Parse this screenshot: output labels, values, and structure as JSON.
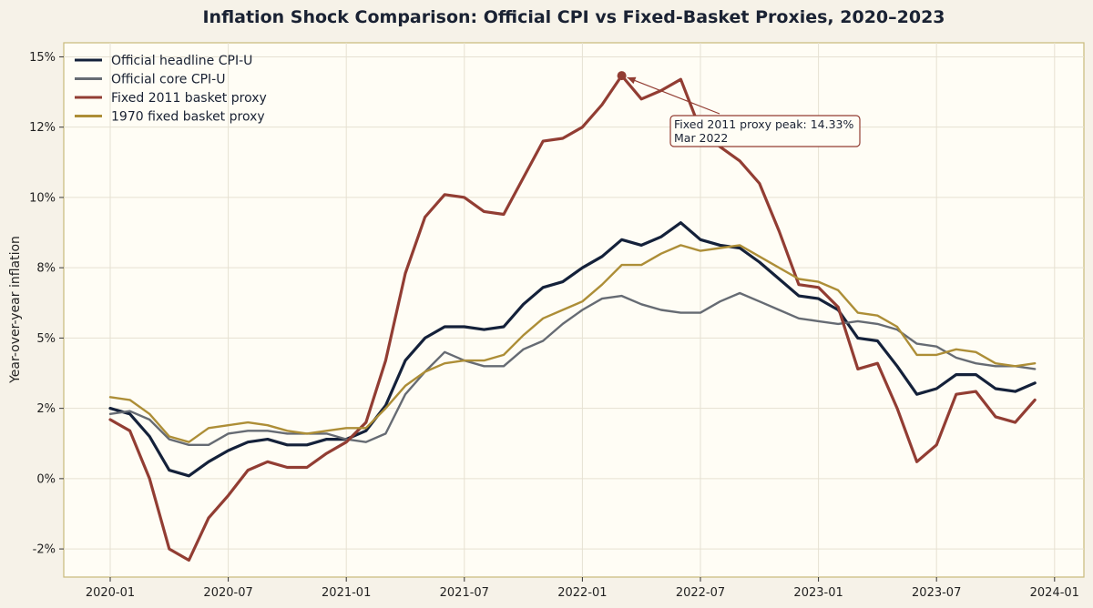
{
  "chart_data": {
    "type": "line",
    "title": "Inflation Shock Comparison: Official CPI vs Fixed-Basket Proxies, 2020–2023",
    "xlabel": "",
    "ylabel": "Year-over-year inflation",
    "x": [
      "2020-01",
      "2020-02",
      "2020-03",
      "2020-04",
      "2020-05",
      "2020-06",
      "2020-07",
      "2020-08",
      "2020-09",
      "2020-10",
      "2020-11",
      "2020-12",
      "2021-01",
      "2021-02",
      "2021-03",
      "2021-04",
      "2021-05",
      "2021-06",
      "2021-07",
      "2021-08",
      "2021-09",
      "2021-10",
      "2021-11",
      "2021-12",
      "2022-01",
      "2022-02",
      "2022-03",
      "2022-04",
      "2022-05",
      "2022-06",
      "2022-07",
      "2022-08",
      "2022-09",
      "2022-10",
      "2022-11",
      "2022-12",
      "2023-01",
      "2023-02",
      "2023-03",
      "2023-04",
      "2023-05",
      "2023-06",
      "2023-07",
      "2023-08",
      "2023-09",
      "2023-10",
      "2023-11",
      "2023-12"
    ],
    "x_ticks": [
      "2020-01",
      "2020-07",
      "2021-01",
      "2021-07",
      "2022-01",
      "2022-07",
      "2023-01",
      "2023-07",
      "2024-01"
    ],
    "y_ticks": [
      -2.5,
      0,
      2.5,
      5,
      7.5,
      10,
      12.5,
      15
    ],
    "y_tick_labels": [
      "-2%",
      "0%",
      "2%",
      "5%",
      "8%",
      "10%",
      "12%",
      "15%"
    ],
    "ylim": [
      -3.5,
      15.5
    ],
    "grid": true,
    "legend_position": "top-left",
    "series": [
      {
        "name": "Official headline CPI-U",
        "color": "#14213a",
        "values": [
          2.5,
          2.3,
          1.5,
          0.3,
          0.1,
          0.6,
          1.0,
          1.3,
          1.4,
          1.2,
          1.2,
          1.4,
          1.4,
          1.7,
          2.6,
          4.2,
          5.0,
          5.4,
          5.4,
          5.3,
          5.4,
          6.2,
          6.8,
          7.0,
          7.5,
          7.9,
          8.5,
          8.3,
          8.6,
          9.1,
          8.5,
          8.3,
          8.2,
          7.7,
          7.1,
          6.5,
          6.4,
          6.0,
          5.0,
          4.9,
          4.0,
          3.0,
          3.2,
          3.7,
          3.7,
          3.2,
          3.1,
          3.4
        ]
      },
      {
        "name": "Official core CPI-U",
        "color": "#666b73",
        "values": [
          2.3,
          2.4,
          2.1,
          1.4,
          1.2,
          1.2,
          1.6,
          1.7,
          1.7,
          1.6,
          1.6,
          1.6,
          1.4,
          1.3,
          1.6,
          3.0,
          3.8,
          4.5,
          4.2,
          4.0,
          4.0,
          4.6,
          4.9,
          5.5,
          6.0,
          6.4,
          6.5,
          6.2,
          6.0,
          5.9,
          5.9,
          6.3,
          6.6,
          6.3,
          6.0,
          5.7,
          5.6,
          5.5,
          5.6,
          5.5,
          5.3,
          4.8,
          4.7,
          4.3,
          4.1,
          4.0,
          4.0,
          3.9
        ]
      },
      {
        "name": "Fixed 2011 basket proxy",
        "color": "#923d33",
        "values": [
          2.1,
          1.7,
          0.0,
          -2.5,
          -2.9,
          -1.4,
          -0.6,
          0.3,
          0.6,
          0.4,
          0.4,
          0.9,
          1.3,
          2.0,
          4.2,
          7.3,
          9.3,
          10.1,
          10.0,
          9.5,
          9.4,
          10.7,
          12.0,
          12.1,
          12.5,
          13.3,
          14.33,
          13.5,
          13.8,
          14.2,
          12.4,
          11.8,
          11.3,
          10.5,
          8.8,
          6.9,
          6.8,
          6.1,
          3.9,
          4.1,
          2.5,
          0.6,
          1.2,
          3.0,
          3.1,
          2.2,
          2.0,
          2.8
        ]
      },
      {
        "name": "1970 fixed basket proxy",
        "color": "#ad8e37",
        "values": [
          2.9,
          2.8,
          2.3,
          1.5,
          1.3,
          1.8,
          1.9,
          2.0,
          1.9,
          1.7,
          1.6,
          1.7,
          1.8,
          1.8,
          2.5,
          3.3,
          3.8,
          4.1,
          4.2,
          4.2,
          4.4,
          5.1,
          5.7,
          6.0,
          6.3,
          6.9,
          7.6,
          7.6,
          8.0,
          8.3,
          8.1,
          8.2,
          8.3,
          7.9,
          7.5,
          7.1,
          7.0,
          6.7,
          5.9,
          5.8,
          5.4,
          4.4,
          4.4,
          4.6,
          4.5,
          4.1,
          4.0,
          4.1
        ]
      }
    ],
    "annotation": {
      "series": "Fixed 2011 basket proxy",
      "x": "2022-03",
      "y": 14.33,
      "line1": "Fixed 2011 proxy peak: 14.33%",
      "line2": "Mar 2022"
    }
  }
}
